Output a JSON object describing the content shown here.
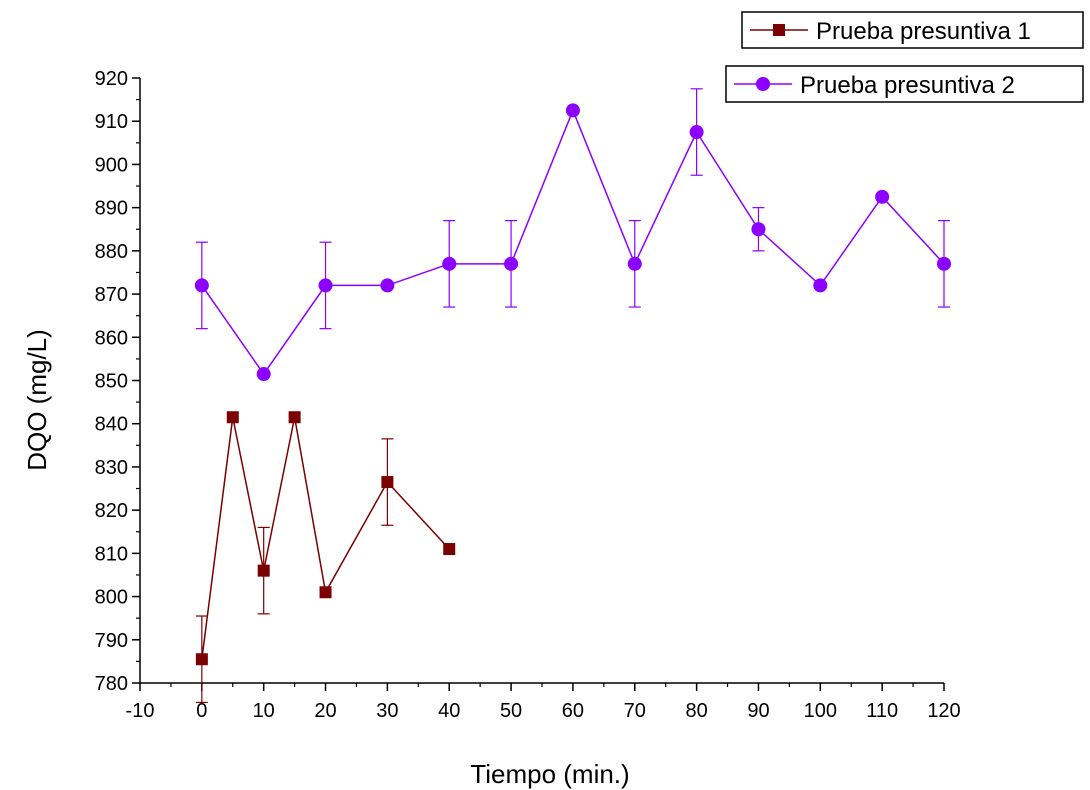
{
  "chart_data": {
    "type": "line",
    "xlabel": "Tiempo (min.)",
    "ylabel": "DQO (mg/L)",
    "xlim": [
      -10,
      120
    ],
    "ylim": [
      780,
      920
    ],
    "xticks": [
      -10,
      0,
      10,
      20,
      30,
      40,
      50,
      60,
      70,
      80,
      90,
      100,
      110,
      120
    ],
    "yticks": [
      780,
      790,
      800,
      810,
      820,
      830,
      840,
      850,
      860,
      870,
      880,
      890,
      900,
      910,
      920
    ],
    "grid": false,
    "legend_position": "top-right",
    "series": [
      {
        "name": "Prueba presuntiva 1",
        "color": "#7b0000",
        "marker": "square",
        "x": [
          0,
          5,
          10,
          15,
          20,
          30,
          40
        ],
        "y": [
          785.5,
          841.5,
          806,
          841.5,
          801,
          826.5,
          811
        ],
        "error": [
          10,
          0,
          10,
          0,
          0,
          10,
          0
        ]
      },
      {
        "name": "Prueba presuntiva 2",
        "color": "#8b00ff",
        "marker": "circle",
        "x": [
          0,
          10,
          20,
          30,
          40,
          50,
          60,
          70,
          80,
          90,
          100,
          110,
          120
        ],
        "y": [
          872,
          851.5,
          872,
          872,
          877,
          877,
          912.5,
          877,
          907.5,
          885,
          872,
          892.5,
          877
        ],
        "error": [
          10,
          0,
          10,
          0,
          10,
          10,
          0,
          10,
          10,
          5,
          0,
          0,
          10
        ]
      }
    ]
  }
}
